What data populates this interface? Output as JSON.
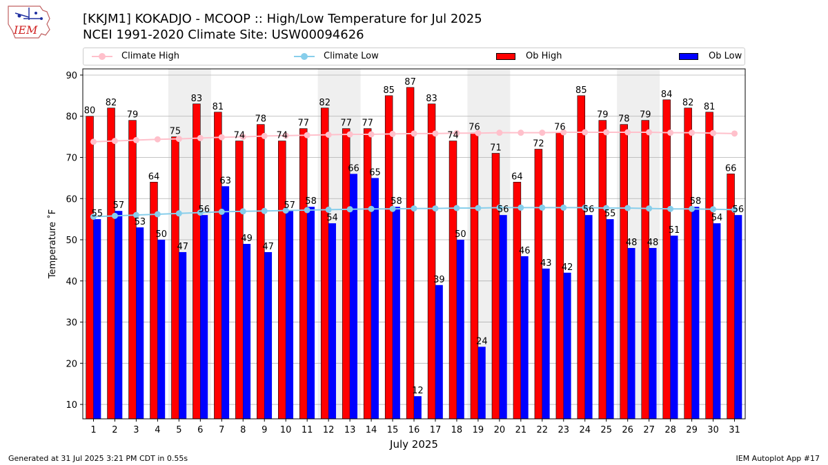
{
  "title_line1": "[KKJM1] KOKADJO - MCOOP :: High/Low Temperature for Jul 2025",
  "title_line2": "NCEI 1991-2020 Climate Site: USW00094626",
  "footer_left": "Generated at 31 Jul 2025 3:21 PM CDT in 0.55s",
  "footer_right": "IEM Autoplot App #17",
  "logo_text": "IEM",
  "colors": {
    "ob_high": "#ff0000",
    "ob_low": "#0000ff",
    "climate_high": "#ffc0cb",
    "climate_low": "#87ceeb",
    "weekend_shade": "#efefef",
    "grid": "#b0b0b0"
  },
  "legend": {
    "climate_high": "Climate High",
    "climate_low": "Climate Low",
    "ob_high": "Ob High",
    "ob_low": "Ob Low"
  },
  "chart_data": {
    "type": "bar",
    "title": "[KKJM1] KOKADJO - MCOOP :: High/Low Temperature for Jul 2025",
    "xlabel": "July 2025",
    "ylabel": "Temperature ˚F",
    "ylim": [
      6.5,
      91.5
    ],
    "yticks": [
      10,
      20,
      30,
      40,
      50,
      60,
      70,
      80,
      90
    ],
    "grid": "horizontal",
    "legend_position": "top",
    "categories": [
      "1",
      "2",
      "3",
      "4",
      "5",
      "6",
      "7",
      "8",
      "9",
      "10",
      "11",
      "12",
      "13",
      "14",
      "15",
      "16",
      "17",
      "18",
      "19",
      "20",
      "21",
      "22",
      "23",
      "24",
      "25",
      "26",
      "27",
      "28",
      "29",
      "30",
      "31"
    ],
    "shaded_days": [
      [
        "5",
        "6"
      ],
      [
        "12",
        "13"
      ],
      [
        "19",
        "20"
      ],
      [
        "26",
        "27"
      ]
    ],
    "series": [
      {
        "name": "Ob High",
        "type": "bar",
        "values": [
          80,
          82,
          79,
          64,
          75,
          83,
          81,
          74,
          78,
          74,
          77,
          82,
          77,
          77,
          85,
          87,
          83,
          74,
          76,
          71,
          64,
          72,
          76,
          85,
          79,
          78,
          79,
          84,
          82,
          81,
          66
        ]
      },
      {
        "name": "Ob Low",
        "type": "bar",
        "values": [
          55,
          57,
          53,
          50,
          47,
          56,
          63,
          49,
          47,
          57,
          58,
          54,
          66,
          65,
          58,
          12,
          39,
          50,
          24,
          56,
          46,
          43,
          42,
          56,
          55,
          48,
          48,
          51,
          58,
          54,
          56
        ]
      },
      {
        "name": "Climate High",
        "type": "line",
        "values": [
          73.8,
          74.0,
          74.2,
          74.4,
          74.5,
          74.7,
          74.9,
          75.0,
          75.2,
          75.3,
          75.4,
          75.5,
          75.6,
          75.6,
          75.7,
          75.8,
          75.8,
          75.9,
          75.9,
          76.0,
          76.0,
          76.0,
          76.1,
          76.1,
          76.1,
          76.1,
          76.1,
          76.0,
          76.0,
          75.9,
          75.8
        ]
      },
      {
        "name": "Climate Low",
        "type": "line",
        "values": [
          55.6,
          55.8,
          56.0,
          56.2,
          56.4,
          56.6,
          56.8,
          56.9,
          57.0,
          57.1,
          57.2,
          57.3,
          57.4,
          57.5,
          57.5,
          57.6,
          57.6,
          57.7,
          57.7,
          57.8,
          57.8,
          57.8,
          57.8,
          57.8,
          57.7,
          57.7,
          57.6,
          57.5,
          57.5,
          57.4,
          57.3
        ]
      }
    ]
  }
}
